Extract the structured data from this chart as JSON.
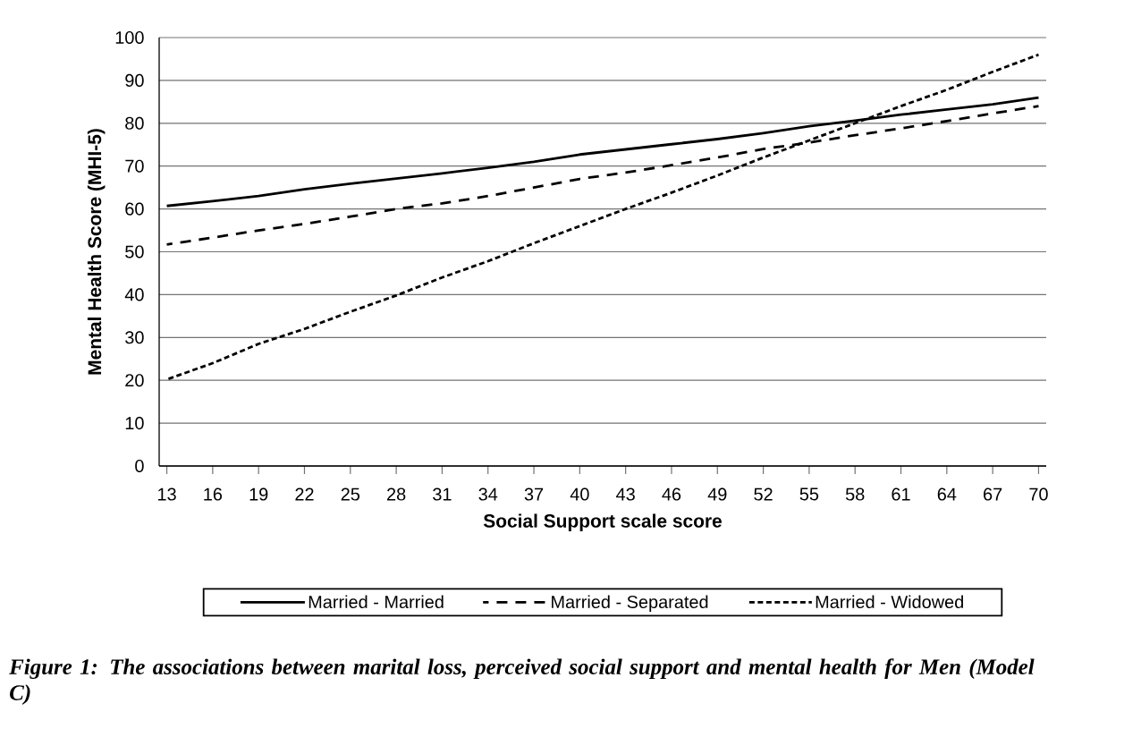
{
  "chart_data": {
    "type": "line",
    "xlabel": "Social Support scale score",
    "ylabel": "Mental Health  Score (MHI-5)",
    "x": [
      13,
      16,
      19,
      22,
      25,
      28,
      31,
      34,
      37,
      40,
      43,
      46,
      49,
      52,
      55,
      58,
      61,
      64,
      67,
      70
    ],
    "series": [
      {
        "name": "Married - Married",
        "color": "#000000",
        "line_style": "solid",
        "values": [
          60.7,
          61.8,
          63,
          64.6,
          65.9,
          67.1,
          68.3,
          69.6,
          71,
          72.7,
          73.9,
          75.1,
          76.3,
          77.7,
          79.3,
          80.6,
          82,
          83.2,
          84.4,
          86
        ]
      },
      {
        "name": "Married - Separated",
        "color": "#000000",
        "line_style": "dashed",
        "values": [
          51.7,
          53.3,
          55,
          56.5,
          58.2,
          60,
          61.3,
          63,
          65,
          67,
          68.5,
          70.2,
          72,
          74,
          75.5,
          77.2,
          78.8,
          80.5,
          82.3,
          84
        ]
      },
      {
        "name": "Married - Widowed",
        "color": "#000000",
        "line_style": "dotted",
        "values": [
          20.2,
          24,
          28.5,
          32,
          36,
          39.8,
          44,
          47.8,
          52,
          56,
          60,
          63.8,
          67.8,
          72,
          76,
          80,
          84,
          87.8,
          92,
          96
        ]
      }
    ],
    "xlim": [
      12.5,
      70.5
    ],
    "xticks": [
      13,
      16,
      19,
      22,
      25,
      28,
      31,
      34,
      37,
      40,
      43,
      46,
      49,
      52,
      55,
      58,
      61,
      64,
      67,
      70
    ],
    "ylim": [
      0,
      100
    ],
    "yticks": [
      0,
      10,
      20,
      30,
      40,
      50,
      60,
      70,
      80,
      90,
      100
    ],
    "grid": "y",
    "legend": "bottom",
    "marker": "none",
    "annotations": [
      "Figure 1: The associations between marital loss, perceived social support and mental health for Men (Model C)"
    ]
  }
}
